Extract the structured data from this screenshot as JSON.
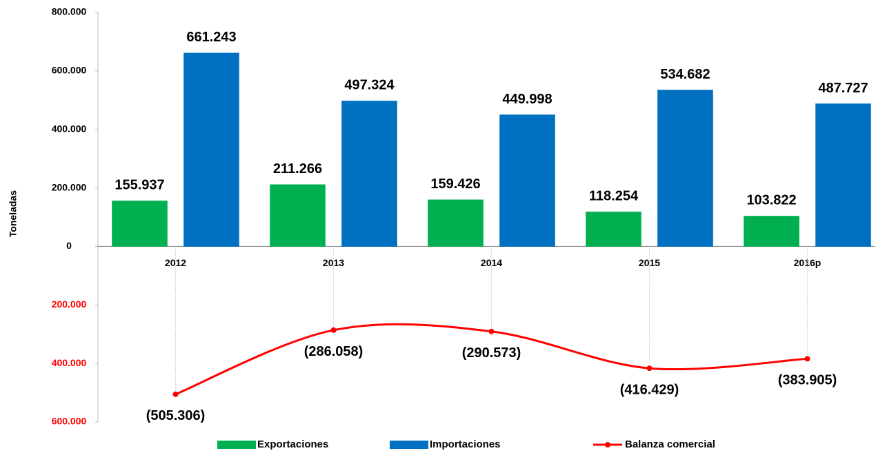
{
  "chart_data": {
    "type": "bar",
    "y_label": "Toneladas",
    "categories": [
      "2012",
      "2013",
      "2014",
      "2015",
      "2016p"
    ],
    "series": [
      {
        "name": "Exportaciones",
        "type": "bar",
        "color": "#00b050",
        "values": [
          155937,
          211266,
          159426,
          118254,
          103822
        ],
        "value_labels": [
          "155.937",
          "211.266",
          "159.426",
          "118.254",
          "103.822"
        ]
      },
      {
        "name": "Importaciones",
        "type": "bar",
        "color": "#0070c0",
        "values": [
          661243,
          497324,
          449998,
          534682,
          487727
        ],
        "value_labels": [
          "661.243",
          "497.324",
          "449.998",
          "534.682",
          "487.727"
        ]
      },
      {
        "name": "Balanza comercial",
        "type": "line",
        "color": "#ff0000",
        "values": [
          -505306,
          -286058,
          -290573,
          -416429,
          -383905
        ],
        "value_labels": [
          "(505.306)",
          "(286.058)",
          "(290.573)",
          "(416.429)",
          "(383.905)"
        ]
      }
    ],
    "ylim": [
      -600000,
      800000
    ],
    "yticks": [
      {
        "value": -600000,
        "label": "600.000"
      },
      {
        "value": -400000,
        "label": "400.000"
      },
      {
        "value": -200000,
        "label": "200.000"
      },
      0,
      {
        "value": 200000,
        "label": "200.000"
      },
      {
        "value": 400000,
        "label": "400.000"
      },
      {
        "value": 600000,
        "label": "600.000"
      },
      {
        "value": 800000,
        "label": "800.000"
      }
    ],
    "negative_tick_color": "#ff0000",
    "legend": "bottom"
  }
}
